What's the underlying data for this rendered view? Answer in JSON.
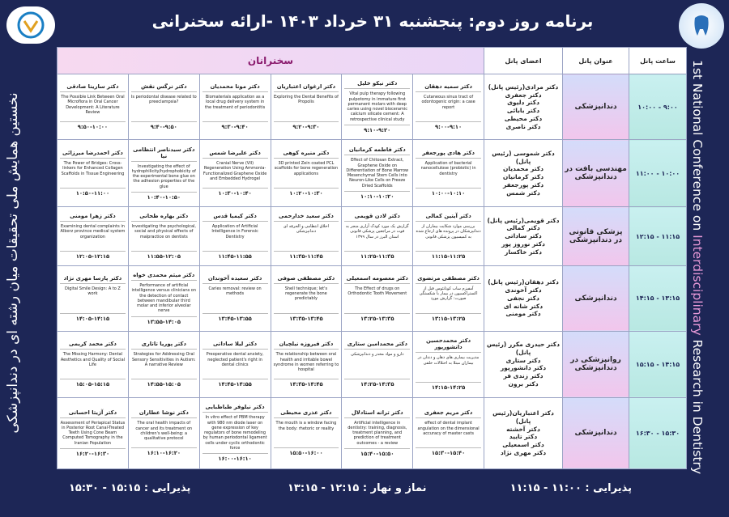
{
  "header": {
    "title": "برنامه روز دوم: پنجشنبه ۳۱ خرداد ۱۴۰۳ -ارائه سخنرانی"
  },
  "side_text": {
    "persian": "نخستین همایش ملی تحقیقات میان رشته ای در دندانپزشکی",
    "english_parts": [
      "1st National Conference on ",
      "Interdisciplinary",
      " Research in Dentistry"
    ]
  },
  "table": {
    "headers": [
      "ساعت پانل",
      "عنوان پانل",
      "اعضای پانل",
      "سخنرانان"
    ],
    "rows": [
      {
        "time": "۹:۰۰ - ۱۰:۰۰",
        "panel_title": "دندانپزشکی",
        "members": [
          "دکتر مرادی(رئیس پانل)",
          "دکتر جعفری",
          "دکتر دلیوی",
          "دکتر بابائی",
          "دکتر محیطی",
          "دکتر ناصری"
        ],
        "speakers": [
          {
            "name": "دکتر سمیه دهقان",
            "topic": "Cutaneous sinus tract of odontogenic origin: a case report",
            "time": "۹:۰۰-۹:۱۰"
          },
          {
            "name": "دکتر نیکو خلیل",
            "topic": "Vital pulp therapy following pulpotomy in immature first permanent molars with deep caries using novel bioceramic calcium silicate cement: A retrospective clinical study",
            "time": "۹:۱۰-۹:۲۰"
          },
          {
            "name": "دکتر ارغوان اعتباریان",
            "topic": "Exploring the Dental Benefits of Propolis",
            "time": "۹:۲۰-۹:۳۰"
          },
          {
            "name": "دکتر مونا محمدیان",
            "topic": "Biomaterials application as a local drug delivery system in the treatment of periodontitis",
            "time": "۹:۳۰-۹:۴۰"
          },
          {
            "name": "دکتر نرگس نقش",
            "topic": "Is periodontal disease related to preeclampsia?",
            "time": "۹:۴۰-۹:۵۰"
          },
          {
            "name": "دکتر سارینا صادقی",
            "topic": "The Possible Link Between Oral Microflora in Oral Cancer Development: A Literature Review",
            "time": "۹:۵۰-۱۰:۰۰"
          }
        ]
      },
      {
        "time": "۱۰:۰۰ - ۱۱:۰۰",
        "panel_title": "مهندسی بافت در دندانپزشکی",
        "members": [
          "دکتر شموسی (رئیس پانل)",
          "دکتر محمدیان",
          "دکتر کرمانیان",
          "دکتر پورجعفر",
          "دکتر شمس"
        ],
        "speakers": [
          {
            "name": "دکتر هادی پورجعفر",
            "topic": "Application of bacterial nanocellulose (probiotic) in dentistry",
            "time": "۱۰:۰۰-۱۰:۱۰"
          },
          {
            "name": "دکتر فاطمه کرمانیان",
            "topic": "Effect of Chitosan Extract, Graphene Oxide on Differentiation of Bone Marrow Mesenchymal Stem Cells into Neuron-Like Cells on Freeze Dried Scaffolds",
            "time": "۱۰:۱۰-۱۰:۲۰"
          },
          {
            "name": "دکتر منیره کوهی",
            "topic": "3D printed Zein coated PCL scaffolds for bone regeneration applications",
            "time": "۱۰:۲۰-۱۰:۳۰"
          },
          {
            "name": "دکتر علیرضا شمس",
            "topic": "Cranial Nerve (VII) Regeneration Using Ammonia-Functionalized Graphene Oxide and Embedded Hydrogel",
            "time": "۱۰:۳۰-۱۰:۴۰"
          },
          {
            "name": "دکتر سیدناصر انتظامی نیا",
            "topic": "Investigating the effect of hydrophilicity/hydrophobicity of the experimental bone glue on the adhesion properties of the glue",
            "time": "۱۰:۴۰-۱۰:۵۰"
          },
          {
            "name": "دکتر احمدرضا میرزائی",
            "topic": "The Power of Bridges: Cross-linkers for Enhanced Collagen Scaffolds in Tissue Engineering",
            "time": "۱۰:۵۰-۱۱:۰۰"
          }
        ]
      },
      {
        "time": "۱۱:۱۵ - ۱۲:۱۵",
        "panel_title": "پزشکی قانونی در دندانپزشکی",
        "members": [
          "دکتر قویمی(رئیس پانل)",
          "دکتر کمالی",
          "دکتر ساداتی",
          "دکتر نوروز پور",
          "دکتر خاکسار"
        ],
        "speakers": [
          {
            "name": "دکتر آیتین کمالی",
            "topic": "بررسی موارد شکایت بیماران از دندانپزشکان در پرونده های ارجاع شده به کمیسیون پزشکی قانونی",
            "time": "۱۱:۱۵-۱۱:۲۵"
          },
          {
            "name": "دکتر لادن قویمی",
            "topic": "گزارش یک مورد کودک آزاری منجر به فوت در مراجعین پزشکی قانونی استان البرز در سال ۱۳۹۹",
            "time": "۱۱:۲۵-۱۱:۳۵"
          },
          {
            "name": "دکتر سعید خدارحمی",
            "topic": "اخلاق انتظامی و الحرفه ای دندانپزشکی",
            "time": "۱۱:۳۵-۱۱:۴۵"
          },
          {
            "name": "دکتر کیمیا قدس",
            "topic": "Application of Artificial Intelligence in Forensic Dentistry",
            "time": "۱۱:۴۵-۱۱:۵۵"
          },
          {
            "name": "دکتر بهاره طحانی",
            "topic": "Investigating the psychological, social and physical effects of malpractice on dentists",
            "time": "۱۱:۵۵-۱۲:۰۵"
          },
          {
            "name": "دکتر زهرا مومنی",
            "topic": "Examining dental complaints in Alborz province medical system organization",
            "time": "۱۲:۰۵-۱۲:۱۵"
          }
        ]
      },
      {
        "time": "۱۳:۱۵ - ۱۴:۱۵",
        "panel_title": "دندانپزشکی",
        "members": [
          "دکتر دهقان(رئیس پانل)",
          "دکتر آخوندی",
          "دکتر نجفی",
          "دکتر شانه ای",
          "دکتر مومنی"
        ],
        "speakers": [
          {
            "name": "دکتر مصطفی مرتضوی",
            "topic": "آمفیزم ساب کوتانئوس قبل از اکستراکسیون در بیمار با شکستگی صورت: گزارش مورد",
            "time": "۱۳:۱۵-۱۳:۲۵"
          },
          {
            "name": "دکتر معصومه اسمعیلی",
            "topic": "The Effect of drugs on Orthodontic Tooth Movement",
            "time": "۱۳:۲۵-۱۳:۳۵"
          },
          {
            "name": "دکتر مصطفی صوفی",
            "topic": "Shell technique; let's regenerate the bone predictably",
            "time": "۱۳:۳۵-۱۳:۴۵"
          },
          {
            "name": "دکتر سعیده آخوندان",
            "topic": "Caries removal: review on methods",
            "time": "۱۳:۴۵-۱۳:۵۵"
          },
          {
            "name": "دکتر میثم محمدی خواه",
            "topic": "Performance of artificial intelligence versus clinicians on the detection of contact between mandibular third molar and inferior alveolar nerve",
            "time": "۱۳:۵۵-۱۴:۰۵"
          },
          {
            "name": "دکتر پارسا مهری نژاد",
            "topic": "Digital Smile Design: A to Z work",
            "time": "۱۴:۰۵-۱۴:۱۵"
          }
        ]
      },
      {
        "time": "۱۴:۱۵ - ۱۵:۱۵",
        "panel_title": "روانپزشکی در دندانپزشکی",
        "members": [
          "دکتر حیدری مکرر (رئیس پانل)",
          "دکتر ستاری",
          "دکتر دانشورپور",
          "دکتر زندی فر",
          "دکتر برون"
        ],
        "speakers": [
          {
            "name": "دکتر محمدحسین دانشورپور",
            "topic": "مدیریت بیماری های دهان و دندان در بیماران مبتلا به اختلالات خلقی",
            "time": "۱۴:۱۵-۱۴:۲۵"
          },
          {
            "name": "دکتر محمدامین ستاری",
            "topic": "دارو و مواد مخدر و دندانپزشکی",
            "time": "۱۴:۲۵-۱۴:۳۵"
          },
          {
            "name": "دکتر فیروزه نیلچیان",
            "topic": "The relationship between oral health and irritable bowel syndrome in women referring to hospital",
            "time": "۱۴:۳۵-۱۴:۴۵"
          },
          {
            "name": "دکتر لیلا ساداتی",
            "topic": "Preoperative dental anxiety, neglected patient's right in dental clinics",
            "time": "۱۴:۴۵-۱۴:۵۵"
          },
          {
            "name": "دکتر پوریا تاتاری",
            "topic": "Strategies for Addressing Oral Sensory Sensitivities in Autism: A narrative Review",
            "time": "۱۴:۵۵-۱۵:۰۵"
          },
          {
            "name": "دکتر محمد کریمی",
            "topic": "The Missing Harmony: Dental Aesthetics and Quality of Social Life",
            "time": "۱۵:۰۵-۱۵:۱۵"
          }
        ]
      },
      {
        "time": "۱۵:۳۰ - ۱۶:۳۰",
        "panel_title": "دندانپزشکی",
        "members": [
          "دکتر اعتباریان(رئیس پانل)",
          "دکتر آخشته",
          "دکتر تایید",
          "دکتر اسمعیلی",
          "دکتر مهری نژاد"
        ],
        "speakers": [
          {
            "name": "دکتر مریم جعفری",
            "topic": "effect of dental implant angulation on the dimensional accuracy of master casts",
            "time": "۱۵:۳۰-۱۵:۴۰"
          },
          {
            "name": "دکتر ترانه استادلال",
            "topic": "Artificial intelligence in dentistry: training, diagnosis, treatment planning, and prediction of treatment outcomes - a review",
            "time": "۱۵:۴۰-۱۵:۵۰"
          },
          {
            "name": "دکتر عذری محیطی",
            "topic": "The mouth is a window facing the body: rhetoric or reality",
            "time": "۱۵:۵۰-۱۶:۰۰"
          },
          {
            "name": "دکتر نیلوفر طباطبایی",
            "topic": "In vitro effect of PBM therapy with 980 nm diode laser on gene expression of key regulators of bone remodeling by human periodontal ligament cells under cyclic orthodontic force",
            "time": "۱۶:۰۰-۱۶:۱۰"
          },
          {
            "name": "دکتر نوشا عطاران",
            "topic": "The oral health impacts of cancer and its treatment on children's well-being: a qualitative protocol",
            "time": "۱۶:۱۰-۱۶:۲۰"
          },
          {
            "name": "دکتر آزیتا احسانی",
            "topic": "Assessment of Periapical Status in Posterior Root Canal-Treated Teeth Using Cone Beam Computed Tomography in the Iranian Population",
            "time": "۱۶:۲۰-۱۶:۳۰"
          }
        ]
      }
    ]
  },
  "footer": [
    "پذیرایی : ۱۱:۰۰ - ۱۱:۱۵",
    "نماز و نهار : ۱۲:۱۵ - ۱۳:۱۵",
    "پذیرایی : ۱۵:۱۵ - ۱۵:۳۰"
  ]
}
